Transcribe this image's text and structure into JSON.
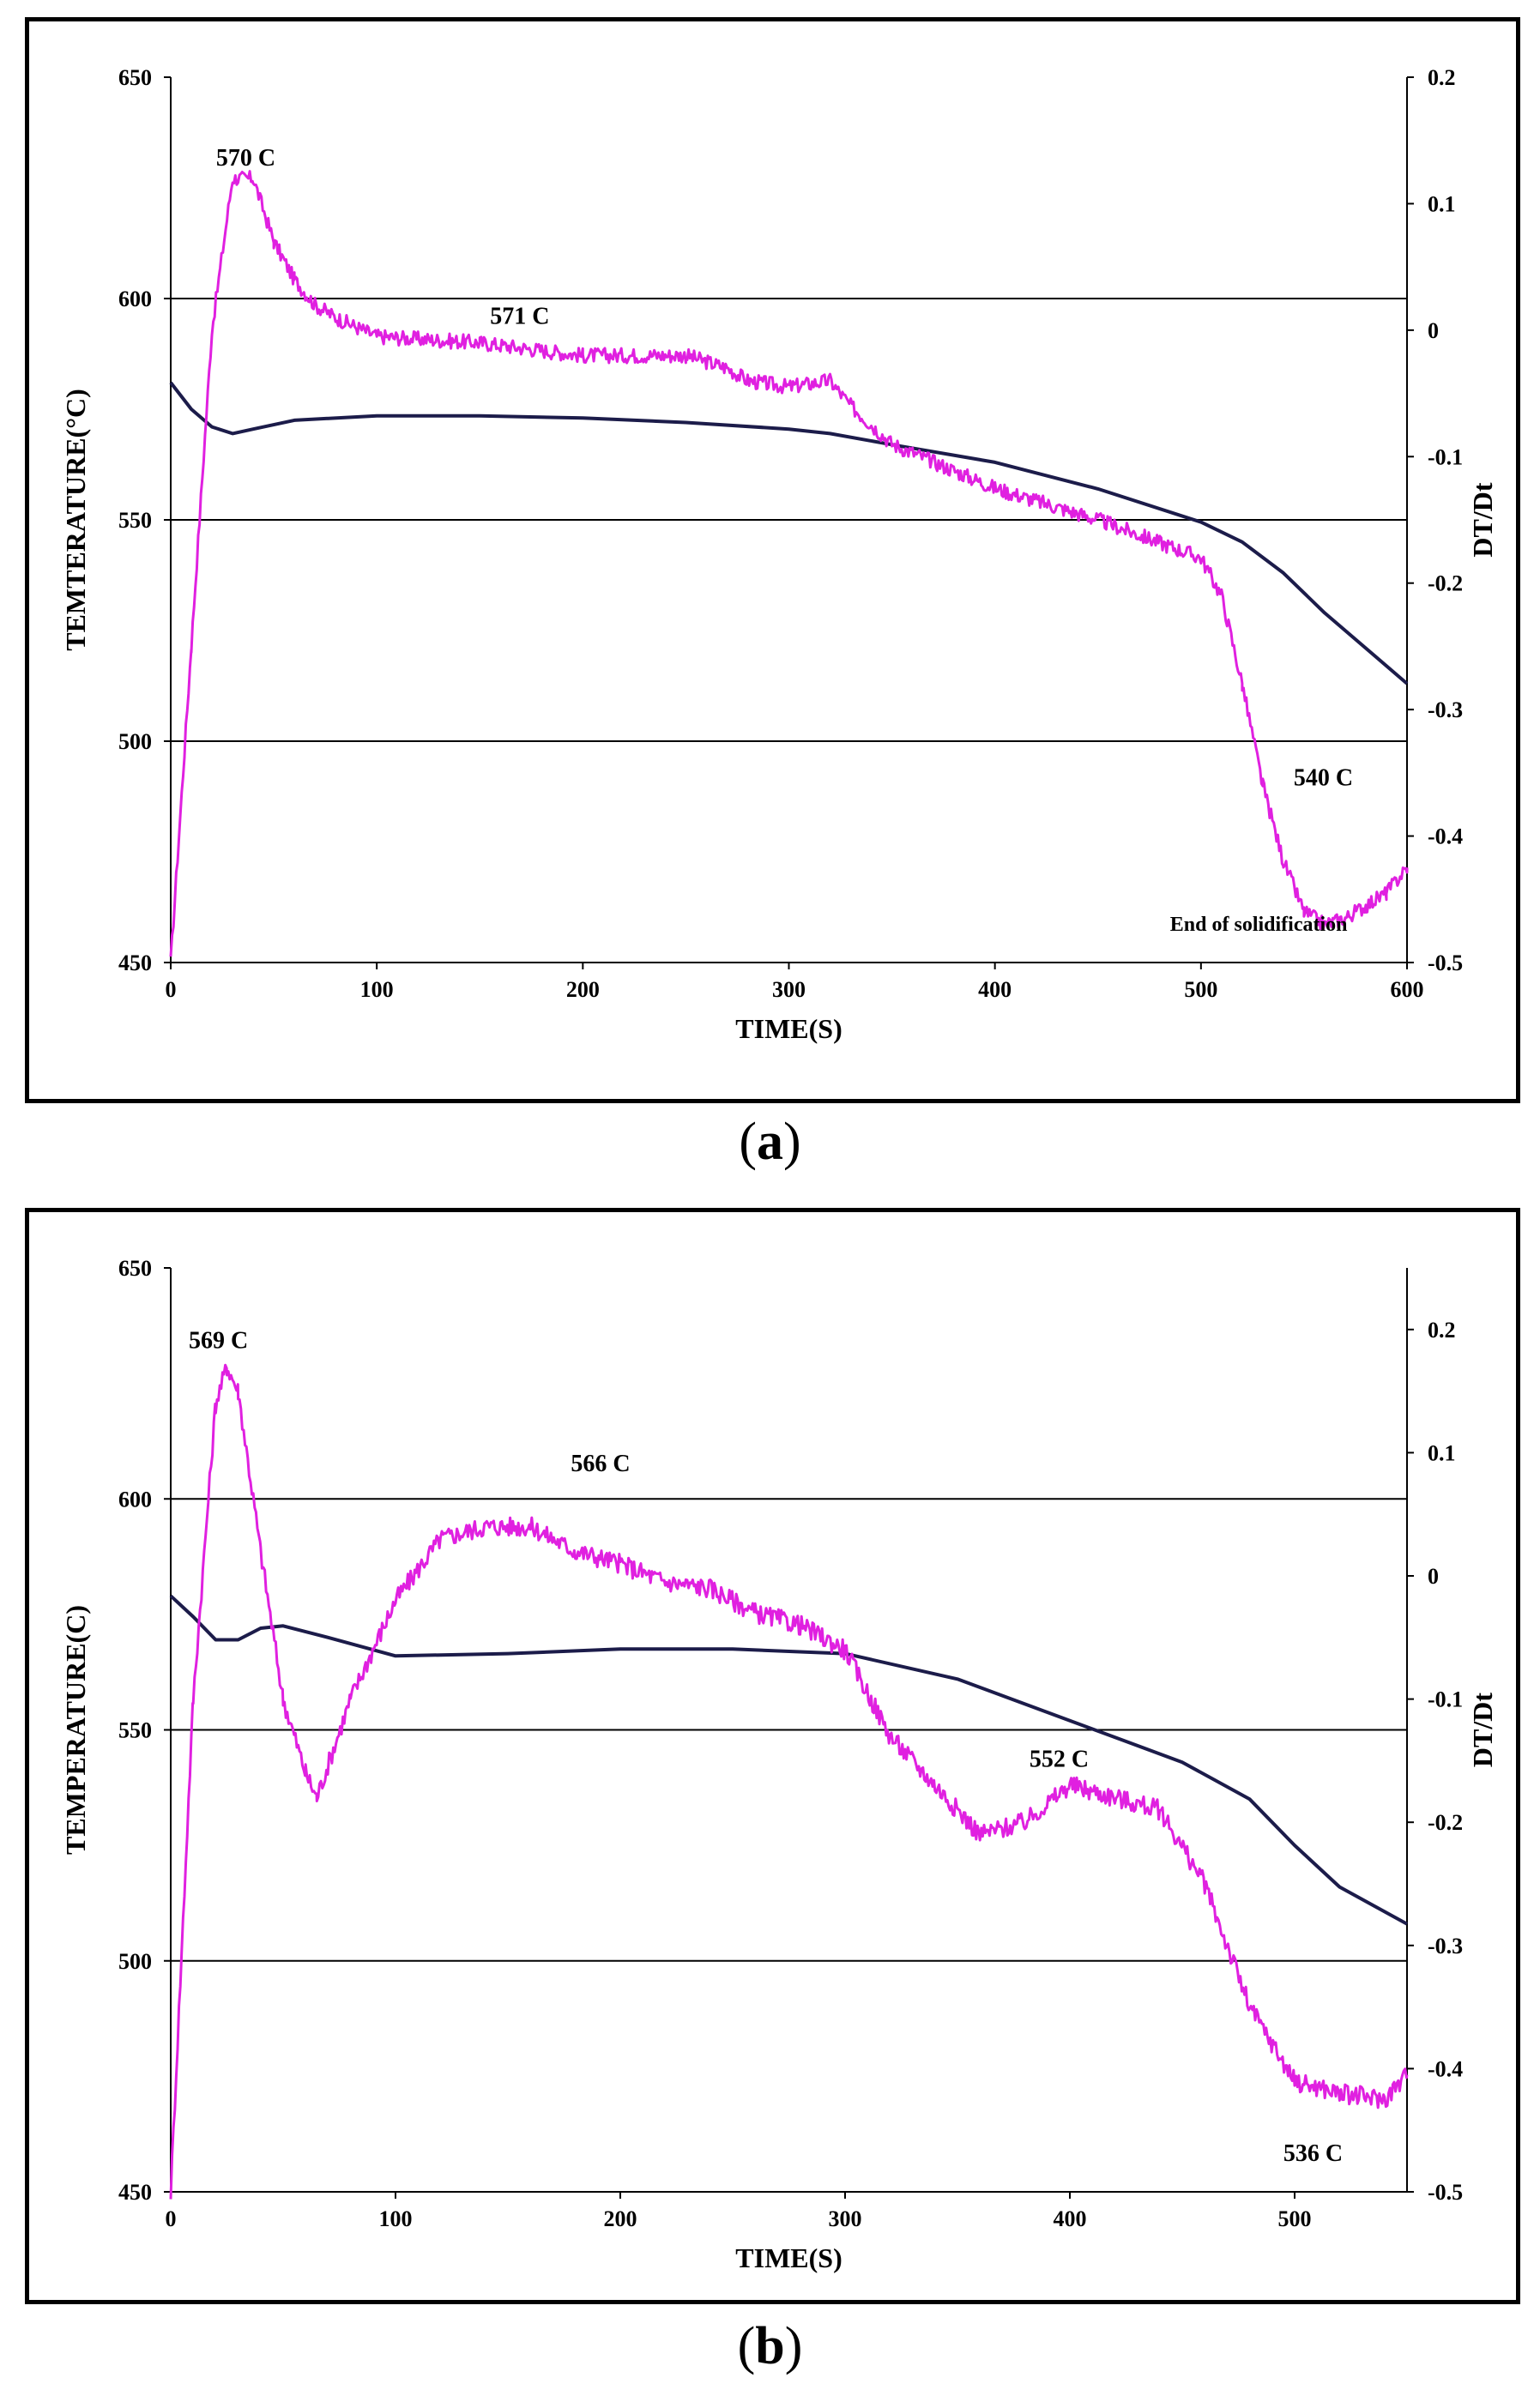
{
  "chart_data": [
    {
      "id": "a",
      "type": "line",
      "caption_letter": "a",
      "xlabel": "TIME(S)",
      "ylabel": "TEMTERATURE(°C)",
      "y2label": "DT/Dt",
      "xlim": [
        0,
        600
      ],
      "ylim": [
        450,
        650
      ],
      "y2lim": [
        -0.5,
        0.2
      ],
      "xticks": [
        0,
        100,
        200,
        300,
        400,
        500,
        600
      ],
      "yticks": [
        450,
        500,
        550,
        600,
        650
      ],
      "y2ticks": [
        0.2,
        0.1,
        0,
        -0.1,
        -0.2,
        -0.3,
        -0.4,
        -0.5
      ],
      "y2tick_labels": [
        "0.2",
        "0.1",
        "0",
        "-0.1",
        "-0.2",
        "-0.3",
        "-0.4",
        "-0.5"
      ],
      "gridlines_y": [
        500,
        550,
        600
      ],
      "series": [
        {
          "name": "Temperature",
          "axis": "left",
          "color": "#1c1c4a",
          "x": [
            0,
            10,
            20,
            30,
            40,
            60,
            100,
            150,
            200,
            250,
            300,
            320,
            350,
            400,
            450,
            500,
            520,
            540,
            560,
            580,
            600
          ],
          "y": [
            581,
            575,
            571,
            569.5,
            570.5,
            572.5,
            573.5,
            573.5,
            573,
            572,
            570.5,
            569.5,
            567,
            563,
            557,
            549.5,
            545,
            538,
            529,
            521,
            513
          ]
        },
        {
          "name": "DT/Dt",
          "axis": "right",
          "color": "#e020e0",
          "noise": 0.006,
          "x": [
            0,
            10,
            20,
            30,
            35,
            40,
            50,
            60,
            70,
            80,
            100,
            150,
            200,
            250,
            270,
            280,
            300,
            320,
            330,
            350,
            400,
            450,
            500,
            510,
            520,
            530,
            540,
            550,
            560,
            570,
            580,
            590,
            600
          ],
          "y": [
            -0.5,
            -0.25,
            0.0,
            0.12,
            0.12,
            0.12,
            0.07,
            0.04,
            0.02,
            0.01,
            -0.005,
            -0.01,
            -0.02,
            -0.02,
            -0.03,
            -0.04,
            -0.045,
            -0.04,
            -0.06,
            -0.09,
            -0.125,
            -0.15,
            -0.18,
            -0.21,
            -0.28,
            -0.36,
            -0.42,
            -0.46,
            -0.47,
            -0.465,
            -0.455,
            -0.445,
            -0.425
          ]
        }
      ],
      "annotations": [
        {
          "text": "570 C",
          "x": 22,
          "y2": 0.13
        },
        {
          "text": "571 C",
          "x": 155,
          "y2": 0.005
        },
        {
          "text": "540 C",
          "x": 545,
          "y2": -0.36
        },
        {
          "text": "End of solidification",
          "x": 485,
          "y2": -0.475,
          "small": true
        }
      ]
    },
    {
      "id": "b",
      "type": "line",
      "caption_letter": "b",
      "xlabel": "TIME(S)",
      "ylabel": "TEMPERATURE(C)",
      "y2label": "DT/Dt",
      "xlim": [
        0,
        550
      ],
      "ylim": [
        450,
        650
      ],
      "y2lim": [
        -0.5,
        0.25
      ],
      "xticks": [
        0,
        100,
        200,
        300,
        400,
        500
      ],
      "yticks": [
        450,
        500,
        550,
        600,
        650
      ],
      "y2ticks": [
        0.2,
        0.1,
        0,
        -0.1,
        -0.2,
        -0.3,
        -0.4,
        -0.5
      ],
      "y2tick_labels": [
        "0.2",
        "0.1",
        "0",
        "-0.1",
        "-0.2",
        "-0.3",
        "-0.4",
        "-0.5"
      ],
      "gridlines_y": [
        500,
        550,
        600
      ],
      "series": [
        {
          "name": "Temperature",
          "axis": "left",
          "color": "#1c1c4a",
          "x": [
            0,
            10,
            20,
            30,
            40,
            50,
            70,
            100,
            150,
            200,
            250,
            300,
            350,
            400,
            450,
            480,
            500,
            520,
            550
          ],
          "y": [
            579,
            574.5,
            569.5,
            569.5,
            572,
            572.5,
            570,
            566,
            566.5,
            567.5,
            567.5,
            566.5,
            561,
            552,
            543,
            535,
            525,
            516,
            508
          ]
        },
        {
          "name": "DT/Dt",
          "axis": "right",
          "color": "#e020e0",
          "noise": 0.008,
          "x": [
            0,
            10,
            20,
            25,
            30,
            40,
            50,
            60,
            65,
            80,
            100,
            120,
            140,
            160,
            180,
            200,
            220,
            240,
            260,
            280,
            300,
            320,
            340,
            360,
            380,
            400,
            420,
            440,
            460,
            480,
            500,
            520,
            540,
            550
          ],
          "y": [
            -0.5,
            -0.1,
            0.14,
            0.17,
            0.15,
            0.02,
            -0.1,
            -0.16,
            -0.18,
            -0.1,
            -0.02,
            0.03,
            0.04,
            0.04,
            0.02,
            0.01,
            -0.005,
            -0.01,
            -0.03,
            -0.04,
            -0.06,
            -0.13,
            -0.17,
            -0.21,
            -0.2,
            -0.17,
            -0.18,
            -0.19,
            -0.25,
            -0.35,
            -0.41,
            -0.42,
            -0.425,
            -0.405
          ]
        }
      ],
      "annotations": [
        {
          "text": "569 C",
          "x": 8,
          "y2": 0.185
        },
        {
          "text": "566 C",
          "x": 178,
          "y2": 0.085
        },
        {
          "text": "552 C",
          "x": 382,
          "y2": -0.155
        },
        {
          "text": "536 C",
          "x": 495,
          "y2": -0.475
        }
      ]
    }
  ]
}
